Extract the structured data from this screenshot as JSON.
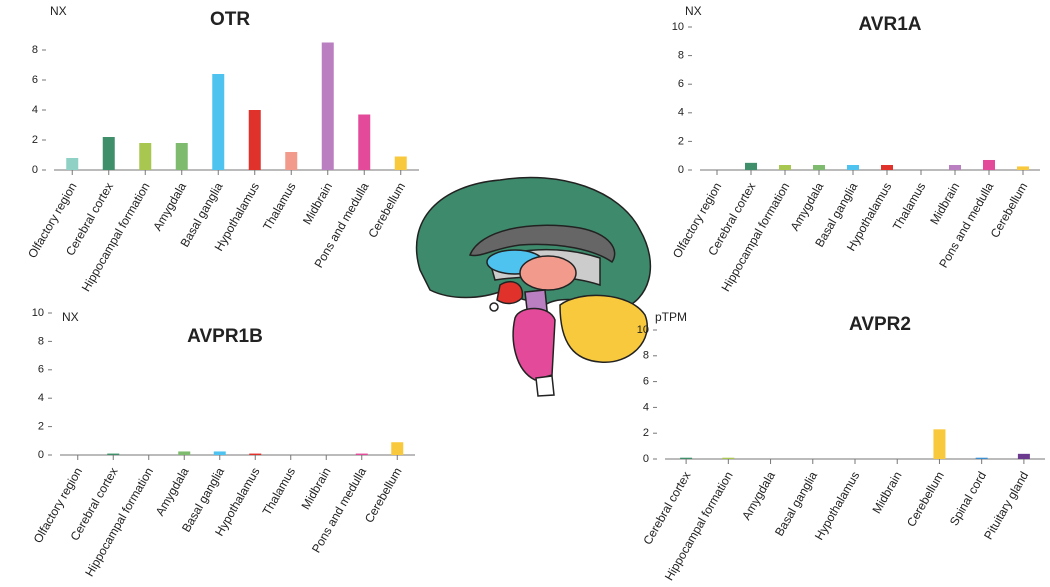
{
  "chart_data": [
    {
      "type": "bar",
      "title": "OTR",
      "unit": "NX",
      "categories": [
        "Olfactory region",
        "Cerebral cortex",
        "Hippocampal formation",
        "Amygdala",
        "Basal ganglia",
        "Hypothalamus",
        "Thalamus",
        "Midbrain",
        "Pons and medulla",
        "Cerebellum"
      ],
      "values": [
        0.8,
        2.2,
        1.8,
        1.8,
        6.4,
        4.0,
        1.2,
        8.5,
        3.7,
        0.9
      ],
      "colors": [
        "#8fd1c4",
        "#3f8f6b",
        "#a8c750",
        "#7fbb6e",
        "#4fc3f0",
        "#e0312b",
        "#f29a8c",
        "#b97fc0",
        "#e34b9a",
        "#f9c93d"
      ],
      "ylim": [
        0,
        10
      ],
      "yticks": [
        0,
        2,
        4,
        6,
        8
      ]
    },
    {
      "type": "bar",
      "title": "AVR1A",
      "unit": "NX",
      "categories": [
        "Olfactory region",
        "Cerebral cortex",
        "Hippocampal formation",
        "Amygdala",
        "Basal ganglia",
        "Hypothalamus",
        "Thalamus",
        "Midbrain",
        "Pons and medulla",
        "Cerebellum"
      ],
      "values": [
        0,
        0.5,
        0.35,
        0.35,
        0.35,
        0.35,
        0,
        0.35,
        0.7,
        0.25
      ],
      "colors": [
        "#8fd1c4",
        "#3f8f6b",
        "#a8c750",
        "#7fbb6e",
        "#4fc3f0",
        "#e0312b",
        "#f29a8c",
        "#b97fc0",
        "#e34b9a",
        "#f9c93d"
      ],
      "ylim": [
        0,
        10
      ],
      "yticks": [
        0,
        2,
        4,
        6,
        8,
        10
      ]
    },
    {
      "type": "bar",
      "title": "AVPR1B",
      "unit": "NX",
      "categories": [
        "Olfactory region",
        "Cerebral cortex",
        "Hippocampal formation",
        "Amygdala",
        "Basal ganglia",
        "Hypothalamus",
        "Thalamus",
        "Midbrain",
        "Pons and medulla",
        "Cerebellum"
      ],
      "values": [
        0,
        0.1,
        0,
        0.25,
        0.25,
        0.1,
        0,
        0,
        0.1,
        0.9
      ],
      "colors": [
        "#8fd1c4",
        "#3f8f6b",
        "#a8c750",
        "#7fbb6e",
        "#4fc3f0",
        "#e0312b",
        "#f29a8c",
        "#b97fc0",
        "#e34b9a",
        "#f9c93d"
      ],
      "ylim": [
        0,
        10
      ],
      "yticks": [
        0,
        2,
        4,
        6,
        8,
        10
      ]
    },
    {
      "type": "bar",
      "title": "AVPR2",
      "unit": "pTPM",
      "categories": [
        "Cerebral cortex",
        "Hippocampal formation",
        "Amygdala",
        "Basal ganglia",
        "Hypothalamus",
        "Midbrain",
        "Cerebellum",
        "Spinal cord",
        "Pituitary gland"
      ],
      "values": [
        0.1,
        0.1,
        0,
        0,
        0,
        0,
        2.3,
        0.1,
        0.4
      ],
      "colors": [
        "#3f8f6b",
        "#a8c750",
        "#7fbb6e",
        "#4fc3f0",
        "#e0312b",
        "#b97fc0",
        "#f9c93d",
        "#3a8fd0",
        "#6b3a8f"
      ],
      "ylim": [
        0,
        10
      ],
      "yticks": [
        0,
        2,
        4,
        6,
        8,
        10
      ]
    }
  ]
}
